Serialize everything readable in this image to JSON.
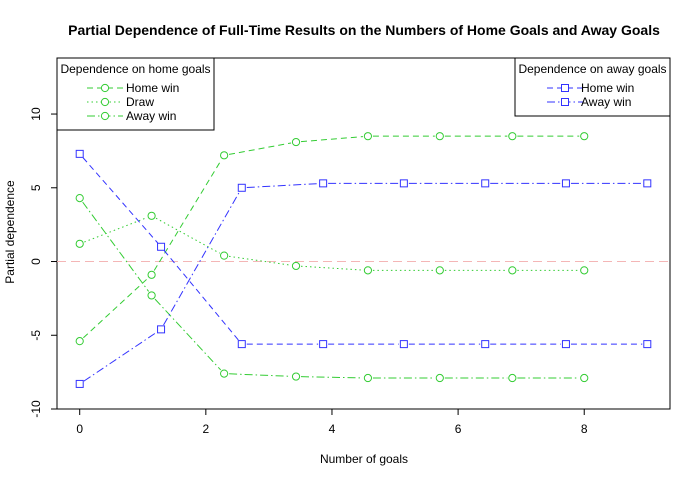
{
  "chart_data": {
    "type": "line",
    "title": "Partial Dependence of Full-Time Results on the Numbers of Home Goals and Away Goals",
    "xlabel": "Number of goals",
    "ylabel": "Partial dependence",
    "xlim": [
      -0.36,
      9.36
    ],
    "ylim": [
      -10.0,
      13.8
    ],
    "x_ticks": [
      0,
      2,
      4,
      6,
      8
    ],
    "y_ticks": [
      -10,
      -5,
      0,
      5,
      10
    ],
    "reference_line": {
      "y": 0,
      "color": "#f4b6b6",
      "style": "dashed"
    },
    "grid": false,
    "legends": [
      {
        "title": "Dependence on home goals",
        "position": "top-left",
        "entries": [
          "Home win",
          "Draw",
          "Away win"
        ]
      },
      {
        "title": "Dependence on away goals",
        "position": "top-right",
        "entries": [
          "Home win",
          "Away win"
        ]
      }
    ],
    "series": [
      {
        "name": "Home win",
        "group": "home goals",
        "color": "#33cc33",
        "marker": "circle",
        "dash": "6,4",
        "x": [
          0,
          1.14,
          2.29,
          3.43,
          4.57,
          5.71,
          6.86,
          8
        ],
        "y": [
          -5.4,
          -0.9,
          7.2,
          8.1,
          8.5,
          8.5,
          8.5,
          8.5
        ]
      },
      {
        "name": "Draw",
        "group": "home goals",
        "color": "#33cc33",
        "marker": "circle",
        "dash": "1.5,3",
        "x": [
          0,
          1.14,
          2.29,
          3.43,
          4.57,
          5.71,
          6.86,
          8
        ],
        "y": [
          1.2,
          3.1,
          0.4,
          -0.3,
          -0.6,
          -0.6,
          -0.6,
          -0.6
        ]
      },
      {
        "name": "Away win",
        "group": "home goals",
        "color": "#33cc33",
        "marker": "circle",
        "dash": "8,3,1.5,3",
        "x": [
          0,
          1.14,
          2.29,
          3.43,
          4.57,
          5.71,
          6.86,
          8
        ],
        "y": [
          4.3,
          -2.3,
          -7.6,
          -7.8,
          -7.9,
          -7.9,
          -7.9,
          -7.9
        ]
      },
      {
        "name": "Home win",
        "group": "away goals",
        "color": "#3333ff",
        "marker": "square",
        "dash": "6,4",
        "x": [
          0,
          1.29,
          2.57,
          3.86,
          5.14,
          6.43,
          7.71,
          9
        ],
        "y": [
          7.3,
          1.0,
          -5.6,
          -5.6,
          -5.6,
          -5.6,
          -5.6,
          -5.6
        ]
      },
      {
        "name": "Away win",
        "group": "away goals",
        "color": "#3333ff",
        "marker": "square",
        "dash": "8,3,1.5,3",
        "x": [
          0,
          1.29,
          2.57,
          3.86,
          5.14,
          6.43,
          7.71,
          9
        ],
        "y": [
          -8.3,
          -4.6,
          5.0,
          5.3,
          5.3,
          5.3,
          5.3,
          5.3
        ]
      }
    ]
  }
}
